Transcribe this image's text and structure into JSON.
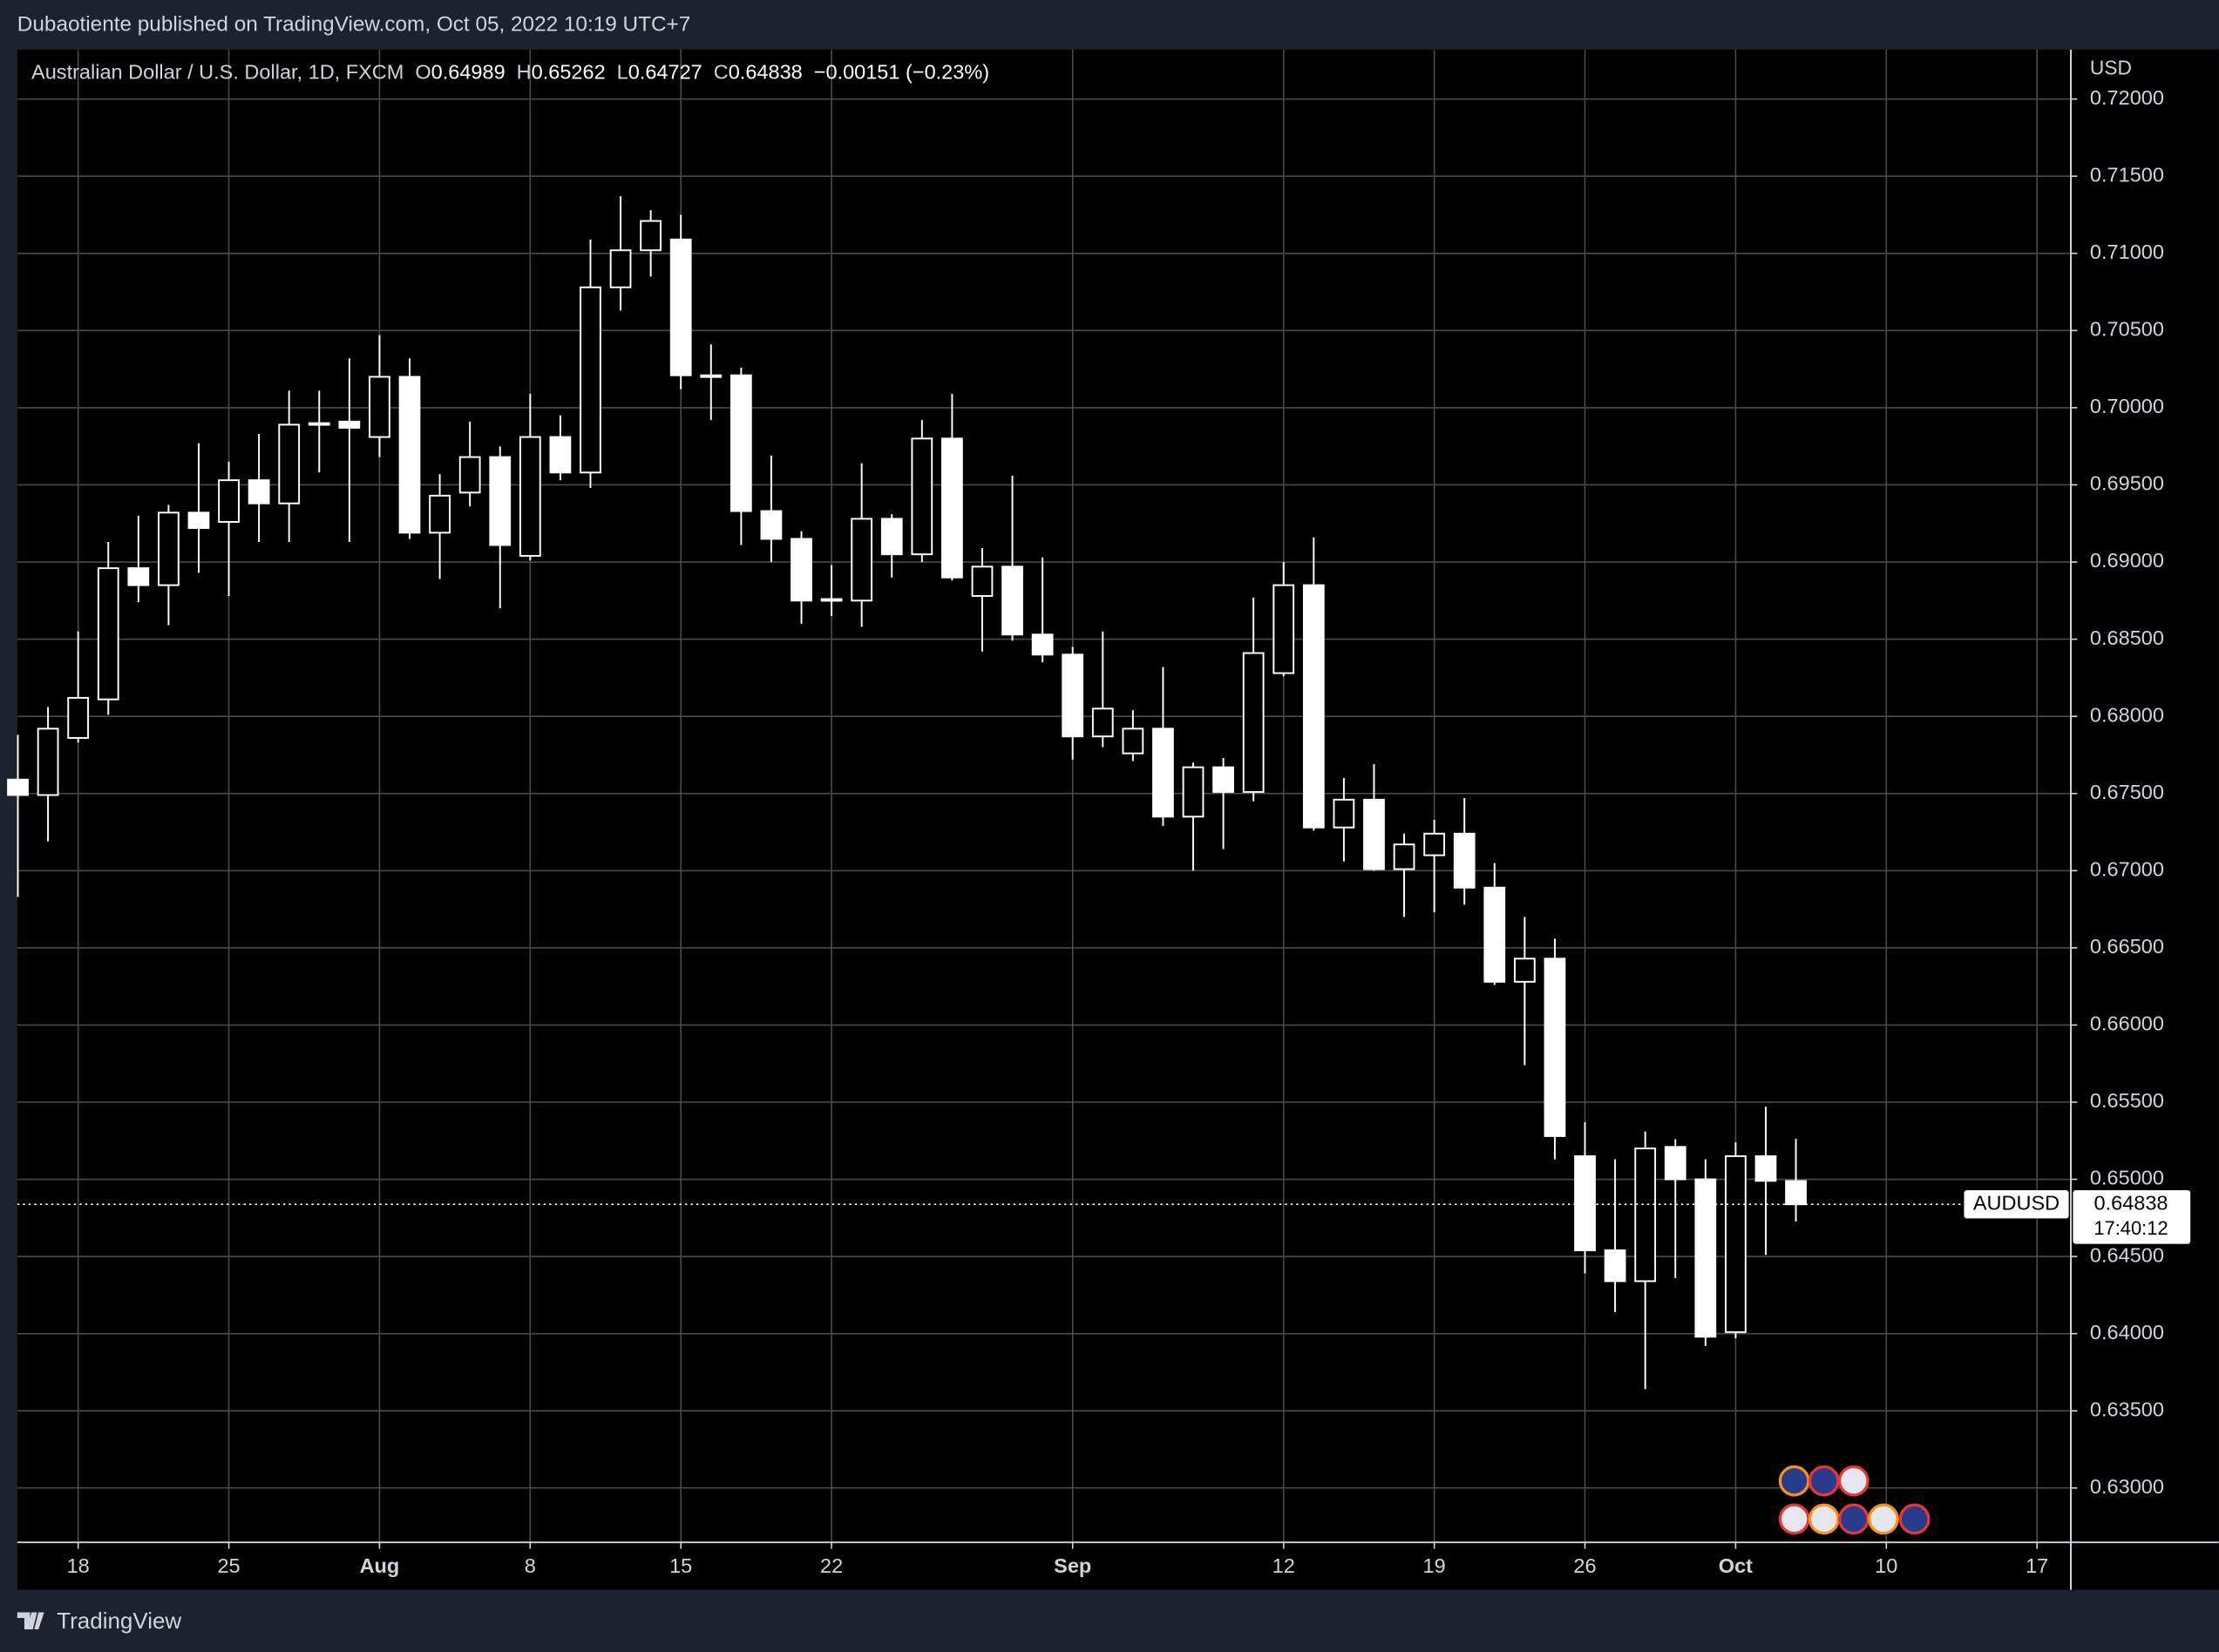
{
  "chart_data": {
    "type": "candlestick",
    "published": "Dubaotiente published on TradingView.com, Oct 05, 2022 10:19 UTC+7",
    "title": "Australian Dollar / U.S. Dollar, 1D, FXCM",
    "ohlc_labels": [
      "O",
      "H",
      "L",
      "C"
    ],
    "change": "−0.00151 (−0.23%)",
    "currency": "USD",
    "symbol": "AUDUSD",
    "countdown": "17:40:12",
    "brand": "TradingView",
    "color": "#ffffff",
    "background": "#000000",
    "grid": true,
    "x": [
      -2,
      -1,
      0,
      1,
      2,
      3,
      4,
      5,
      6,
      7,
      8,
      9,
      10,
      11,
      12,
      13,
      14,
      15,
      16,
      17,
      18,
      19,
      20,
      21,
      22,
      23,
      24,
      25,
      26,
      27,
      28,
      29,
      30,
      31,
      32,
      33,
      34,
      35,
      36,
      37,
      38,
      39,
      40,
      41,
      42,
      43,
      44,
      45,
      46,
      47,
      48,
      49,
      50,
      51,
      52,
      53,
      54,
      55,
      56,
      57
    ],
    "open": [
      0.6759,
      0.6749,
      0.6786,
      0.6811,
      0.6896,
      0.6885,
      0.6932,
      0.6926,
      0.6953,
      0.6938,
      0.699,
      0.6991,
      0.6981,
      0.702,
      0.6919,
      0.6945,
      0.6968,
      0.6904,
      0.6981,
      0.6958,
      0.7078,
      0.7102,
      0.7109,
      0.7021,
      0.7021,
      0.6933,
      0.6915,
      0.6875,
      0.6875,
      0.6928,
      0.6905,
      0.698,
      0.6878,
      0.6897,
      0.6853,
      0.684,
      0.6787,
      0.6776,
      0.6792,
      0.6735,
      0.6767,
      0.6751,
      0.6828,
      0.6885,
      0.6728,
      0.6746,
      0.6701,
      0.671,
      0.6724,
      0.6689,
      0.6628,
      0.6643,
      0.6515,
      0.6454,
      0.6434,
      0.6521,
      0.65,
      0.6401,
      0.6515,
      0.64989
    ],
    "high": [
      0.6788,
      0.6806,
      0.6855,
      0.6913,
      0.693,
      0.6937,
      0.6977,
      0.6965,
      0.6983,
      0.7011,
      0.7011,
      0.7032,
      0.7047,
      0.7032,
      0.6957,
      0.6991,
      0.6975,
      0.7009,
      0.6995,
      0.7109,
      0.7137,
      0.7128,
      0.7125,
      0.7041,
      0.7026,
      0.6969,
      0.692,
      0.6898,
      0.6964,
      0.6931,
      0.6992,
      0.7009,
      0.6909,
      0.6956,
      0.6903,
      0.6845,
      0.6855,
      0.6804,
      0.6832,
      0.677,
      0.6773,
      0.6877,
      0.69,
      0.6916,
      0.676,
      0.6769,
      0.6724,
      0.6733,
      0.6747,
      0.6705,
      0.667,
      0.6656,
      0.6537,
      0.6513,
      0.6531,
      0.6526,
      0.6513,
      0.6524,
      0.6547,
      0.65262
    ],
    "low": [
      0.6683,
      0.6719,
      0.6783,
      0.6801,
      0.6874,
      0.6859,
      0.6893,
      0.6878,
      0.6913,
      0.6913,
      0.6958,
      0.6913,
      0.6968,
      0.6915,
      0.6889,
      0.6936,
      0.687,
      0.6901,
      0.6953,
      0.6948,
      0.7063,
      0.7085,
      0.7012,
      0.6992,
      0.6911,
      0.69,
      0.686,
      0.6865,
      0.6858,
      0.689,
      0.69,
      0.6888,
      0.6842,
      0.6849,
      0.6835,
      0.6772,
      0.678,
      0.6771,
      0.6729,
      0.67,
      0.6714,
      0.6745,
      0.6826,
      0.6726,
      0.6706,
      0.67,
      0.667,
      0.6673,
      0.6678,
      0.6626,
      0.6574,
      0.6513,
      0.6439,
      0.6414,
      0.6364,
      0.6436,
      0.6392,
      0.6397,
      0.6451,
      0.64727
    ],
    "close": [
      0.6749,
      0.6792,
      0.6812,
      0.6896,
      0.6885,
      0.6932,
      0.6922,
      0.6953,
      0.6938,
      0.6989,
      0.6989,
      0.6987,
      0.702,
      0.6919,
      0.6943,
      0.6968,
      0.6911,
      0.6981,
      0.6958,
      0.7078,
      0.7102,
      0.7121,
      0.7021,
      0.702,
      0.6933,
      0.6915,
      0.6875,
      0.6876,
      0.6928,
      0.6905,
      0.698,
      0.689,
      0.6897,
      0.6853,
      0.684,
      0.6787,
      0.6805,
      0.6792,
      0.6735,
      0.6767,
      0.6751,
      0.6841,
      0.6885,
      0.6728,
      0.6746,
      0.6701,
      0.6717,
      0.6724,
      0.6689,
      0.6628,
      0.6643,
      0.6528,
      0.6454,
      0.6434,
      0.652,
      0.65,
      0.6398,
      0.6515,
      0.6499,
      0.64838
    ],
    "xlim": [
      -2.02,
      66.1
    ],
    "xticks": [
      {
        "value": 0,
        "label": "18"
      },
      {
        "value": 5,
        "label": "25"
      },
      {
        "value": 10,
        "label": "Aug"
      },
      {
        "value": 15,
        "label": "8"
      },
      {
        "value": 20,
        "label": "15"
      },
      {
        "value": 25,
        "label": "22"
      },
      {
        "value": 33,
        "label": "Sep"
      },
      {
        "value": 40,
        "label": "12"
      },
      {
        "value": 45,
        "label": "19"
      },
      {
        "value": 50,
        "label": "26"
      },
      {
        "value": 55,
        "label": "Oct"
      },
      {
        "value": 60,
        "label": "10"
      },
      {
        "value": 65,
        "label": "17"
      }
    ],
    "ylim": [
      0.62652,
      0.72321
    ],
    "yticks": [
      {
        "value": 0.63,
        "label": "0.63000"
      },
      {
        "value": 0.635,
        "label": "0.63500"
      },
      {
        "value": 0.64,
        "label": "0.64000"
      },
      {
        "value": 0.645,
        "label": "0.64500"
      },
      {
        "value": 0.65,
        "label": "0.65000"
      },
      {
        "value": 0.655,
        "label": "0.65500"
      },
      {
        "value": 0.66,
        "label": "0.66000"
      },
      {
        "value": 0.665,
        "label": "0.66500"
      },
      {
        "value": 0.67,
        "label": "0.67000"
      },
      {
        "value": 0.675,
        "label": "0.67500"
      },
      {
        "value": 0.68,
        "label": "0.68000"
      },
      {
        "value": 0.685,
        "label": "0.68500"
      },
      {
        "value": 0.69,
        "label": "0.69000"
      },
      {
        "value": 0.695,
        "label": "0.69500"
      },
      {
        "value": 0.7,
        "label": "0.70000"
      },
      {
        "value": 0.705,
        "label": "0.70500"
      },
      {
        "value": 0.71,
        "label": "0.71000"
      },
      {
        "value": 0.715,
        "label": "0.71500"
      },
      {
        "value": 0.72,
        "label": "0.72000"
      }
    ]
  }
}
